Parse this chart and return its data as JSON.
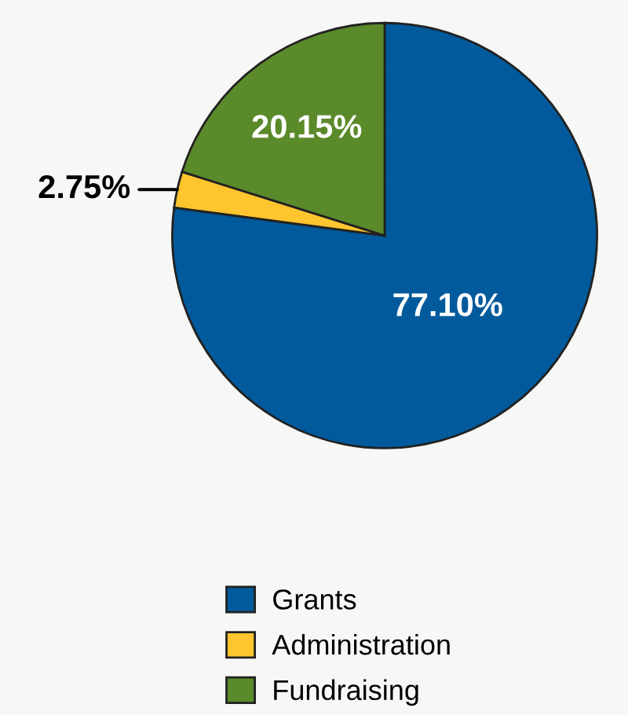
{
  "chart_data": {
    "type": "pie",
    "categories": [
      "Grants",
      "Administration",
      "Fundraising"
    ],
    "values": [
      77.1,
      2.75,
      20.15
    ],
    "colors": [
      "#005a9c",
      "#fec52e",
      "#5b8a2b"
    ],
    "value_labels": [
      "77.10%",
      "2.75%",
      "20.15%"
    ],
    "legend": "bottom"
  }
}
